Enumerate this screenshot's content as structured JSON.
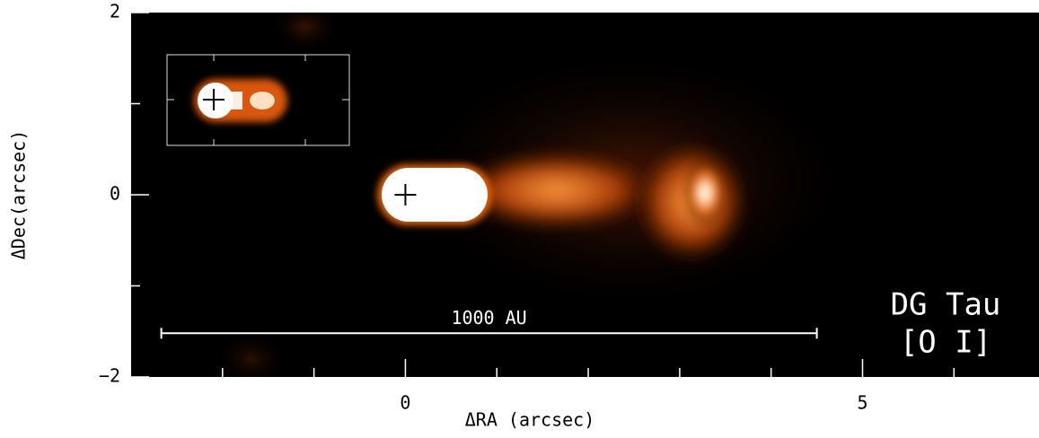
{
  "chart_data": {
    "type": "image",
    "title": "DG Tau",
    "subtitle": "[O I]",
    "x_label": "ΔRA (arcsec)",
    "y_label": "ΔDec(arcsec)",
    "xlim": [
      -3,
      6.93
    ],
    "ylim": [
      -2,
      2
    ],
    "xticks": [
      0,
      5
    ],
    "xticks_minor": [
      -2,
      -1,
      1,
      2,
      3,
      4,
      6
    ],
    "yticks": [
      {
        "value": -2,
        "label": "−2"
      },
      0,
      2
    ],
    "yticks_minor": [
      -1,
      1
    ],
    "source": {
      "x": 0,
      "y": 0
    },
    "scale_bar": {
      "label": "1000 AU",
      "x": [
        -2.67,
        4.5
      ],
      "y": -1.52
    }
  }
}
